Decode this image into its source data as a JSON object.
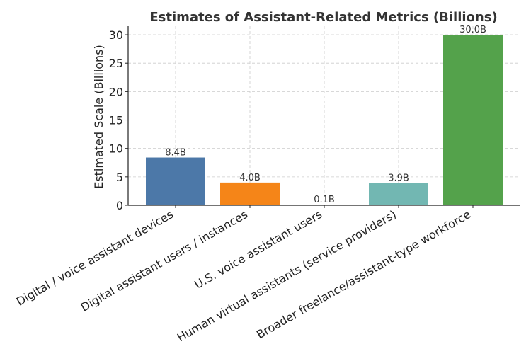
{
  "chart_data": {
    "type": "bar",
    "title": "Estimates of Assistant-Related Metrics (Billions)",
    "xlabel": "",
    "ylabel": "Estimated Scale (Billions)",
    "ylim": [
      0,
      31.5
    ],
    "yticks": [
      0,
      5,
      10,
      15,
      20,
      25,
      30
    ],
    "grid": true,
    "categories": [
      "Digital / voice assistant devices",
      "Digital assistant users / instances",
      "U.S. voice assistant users",
      "Human virtual assistants (service providers)",
      "Broader freelance/assistant-type workforce"
    ],
    "values": [
      8.4,
      4.0,
      0.1,
      3.9,
      30.0
    ],
    "data_labels": [
      "8.4B",
      "4.0B",
      "0.1B",
      "3.9B",
      "30.0B"
    ],
    "colors": [
      "#4c78a8",
      "#f58518",
      "#e45756",
      "#72b7b2",
      "#54a24b"
    ]
  }
}
